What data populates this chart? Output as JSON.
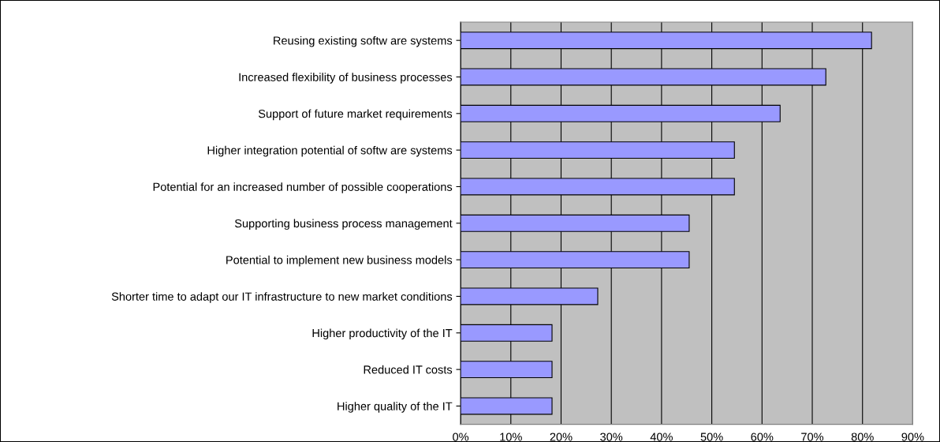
{
  "chart_data": {
    "type": "bar",
    "orientation": "horizontal",
    "categories": [
      "Reusing existing softw are systems",
      "Increased flexibility of business processes",
      "Support of future market requirements",
      "Higher integration potential of softw are systems",
      "Potential for an increased number of possible cooperations",
      "Supporting business process management",
      "Potential to implement new business models",
      "Shorter time to adapt our IT infrastructure to new market conditions",
      "Higher productivity of the IT",
      "Reduced IT costs",
      "Higher quality of the IT"
    ],
    "values": [
      81.8,
      72.7,
      63.6,
      54.5,
      54.5,
      45.5,
      45.5,
      27.3,
      18.2,
      18.2,
      18.2
    ],
    "color": "#9999ff",
    "xlim": [
      0,
      90
    ],
    "xticks": [
      {
        "value": 0,
        "label": "0%"
      },
      {
        "value": 10,
        "label": "10%"
      },
      {
        "value": 20,
        "label": "20%"
      },
      {
        "value": 30,
        "label": "30%"
      },
      {
        "value": 40,
        "label": "40%"
      },
      {
        "value": 50,
        "label": "50%"
      },
      {
        "value": 60,
        "label": "60%"
      },
      {
        "value": 70,
        "label": "70%"
      },
      {
        "value": 80,
        "label": "80%"
      },
      {
        "value": 90,
        "label": "90%"
      }
    ],
    "grid": "x",
    "legend": false
  }
}
